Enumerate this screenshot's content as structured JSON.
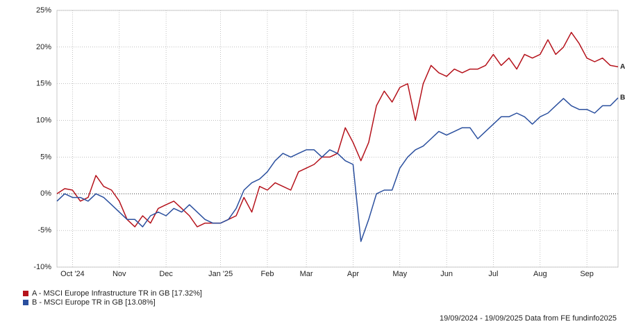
{
  "chart_data": {
    "type": "line",
    "categories": [
      null,
      null,
      "Oct '24",
      null,
      null,
      null,
      null,
      null,
      "Nov",
      null,
      null,
      null,
      null,
      null,
      "Dec",
      null,
      null,
      null,
      null,
      null,
      null,
      "Jan '25",
      null,
      null,
      null,
      null,
      null,
      "Feb",
      null,
      null,
      null,
      null,
      "Mar",
      null,
      null,
      null,
      null,
      null,
      "Apr",
      null,
      null,
      null,
      null,
      null,
      "May",
      null,
      null,
      null,
      null,
      null,
      "Jun",
      null,
      null,
      null,
      null,
      null,
      "Jul",
      null,
      null,
      null,
      null,
      null,
      "Aug",
      null,
      null,
      null,
      null,
      null,
      "Sep",
      null,
      null,
      null,
      null
    ],
    "series": [
      {
        "name": "A - MSCI Europe Infrastructure TR in GB [17.32%]",
        "end_label": "A",
        "color": "#b5121b",
        "values": [
          0,
          0.7,
          0.5,
          -1,
          -0.5,
          2.5,
          1,
          0.5,
          -1,
          -3.5,
          -4.5,
          -3,
          -4,
          -2,
          -1.5,
          -1,
          -2,
          -3,
          -4.5,
          -4,
          -4,
          -4,
          -3.5,
          -3,
          -0.5,
          -2.5,
          1,
          0.5,
          1.5,
          1,
          0.5,
          3,
          3.5,
          4,
          5,
          5,
          5.5,
          9,
          7,
          4.5,
          7,
          12,
          14,
          12.5,
          14.5,
          15,
          10,
          15,
          17.5,
          16.5,
          16,
          17,
          16.5,
          17,
          17,
          17.5,
          19,
          17.5,
          18.5,
          17,
          19,
          18.5,
          19,
          21,
          19,
          20,
          22,
          20.5,
          18.5,
          18,
          18.5,
          17.5,
          17.32
        ]
      },
      {
        "name": "B - MSCI Europe TR in GB [13.08%]",
        "end_label": "B",
        "color": "#2a4f9e",
        "values": [
          -1,
          0,
          -0.5,
          -0.5,
          -1,
          0,
          -0.5,
          -1.5,
          -2.5,
          -3.5,
          -3.5,
          -4.5,
          -3,
          -2.5,
          -3,
          -2,
          -2.5,
          -1.5,
          -2.5,
          -3.5,
          -4,
          -4,
          -3.5,
          -2,
          0.5,
          1.5,
          2,
          3,
          4.5,
          5.5,
          5,
          5.5,
          6,
          6,
          5,
          6,
          5.5,
          4.5,
          4,
          -6.5,
          -3.5,
          0,
          0.5,
          0.5,
          3.5,
          5,
          6,
          6.5,
          7.5,
          8.5,
          8,
          8.5,
          9,
          9,
          7.5,
          8.5,
          9.5,
          10.5,
          10.5,
          11,
          10.5,
          9.5,
          10.5,
          11,
          12,
          13,
          12,
          11.5,
          11.5,
          11,
          12,
          12,
          13.08
        ]
      }
    ],
    "ylim": [
      -10,
      25
    ],
    "yticks": [
      {
        "value": -10,
        "label": "-10%"
      },
      {
        "value": -5,
        "label": "-5%"
      },
      {
        "value": 0,
        "label": "0%"
      },
      {
        "value": 5,
        "label": "5%"
      },
      {
        "value": 10,
        "label": "10%"
      },
      {
        "value": 15,
        "label": "15%"
      },
      {
        "value": 20,
        "label": "20%"
      },
      {
        "value": 25,
        "label": "25%"
      }
    ],
    "grid": true,
    "footer": "19/09/2024 - 19/09/2025 Data from FE fundinfo2025"
  }
}
